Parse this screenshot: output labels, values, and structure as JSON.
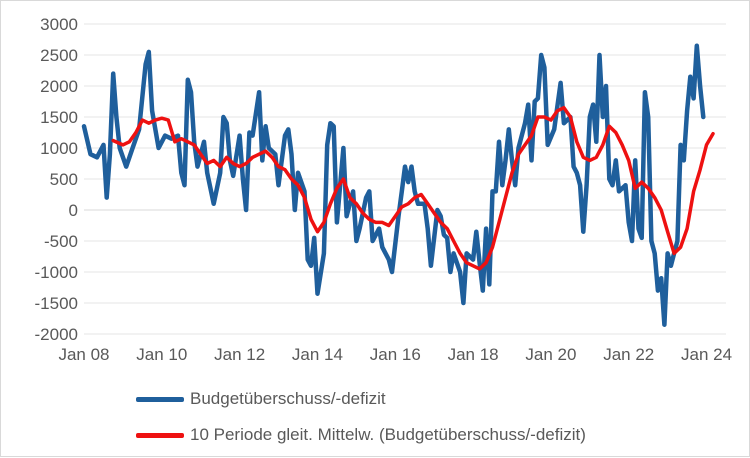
{
  "chart_data": {
    "type": "line",
    "title": "",
    "xlabel": "",
    "ylabel": "",
    "ylim": [
      -2000,
      3000
    ],
    "yticks": [
      3000,
      2500,
      2000,
      1500,
      1000,
      500,
      0,
      -500,
      -1000,
      -1500,
      -2000
    ],
    "ytick_labels": [
      "3000",
      "2500",
      "2000",
      "1500",
      "1000",
      "500",
      "0",
      "-500",
      "-1000",
      "-1500",
      "-2000"
    ],
    "xlim": [
      "2008-01",
      "2024-07"
    ],
    "xticks": [
      "2008-01",
      "2010-01",
      "2012-01",
      "2014-01",
      "2016-01",
      "2018-01",
      "2020-01",
      "2022-01",
      "2024-01"
    ],
    "xtick_labels": [
      "Jan 08",
      "Jan 10",
      "Jan 12",
      "Jan 14",
      "Jan 16",
      "Jan 18",
      "Jan 20",
      "Jan 22",
      "Jan 24"
    ],
    "grid": "horizontal",
    "legend_position": "bottom",
    "series": [
      {
        "name": "Budgetüberschuss/-defizit",
        "color": "#1f5f9c",
        "points": [
          [
            "2008-01",
            1350
          ],
          [
            "2008-03",
            900
          ],
          [
            "2008-05",
            850
          ],
          [
            "2008-07",
            1050
          ],
          [
            "2008-08",
            200
          ],
          [
            "2008-09",
            900
          ],
          [
            "2008-10",
            2200
          ],
          [
            "2008-11",
            1500
          ],
          [
            "2008-12",
            1000
          ],
          [
            "2009-02",
            700
          ],
          [
            "2009-04",
            1000
          ],
          [
            "2009-06",
            1300
          ],
          [
            "2009-08",
            2350
          ],
          [
            "2009-09",
            2550
          ],
          [
            "2009-10",
            1600
          ],
          [
            "2009-12",
            1000
          ],
          [
            "2010-02",
            1200
          ],
          [
            "2010-04",
            1150
          ],
          [
            "2010-06",
            1200
          ],
          [
            "2010-07",
            600
          ],
          [
            "2010-08",
            400
          ],
          [
            "2010-09",
            2100
          ],
          [
            "2010-10",
            1900
          ],
          [
            "2010-11",
            1100
          ],
          [
            "2010-12",
            700
          ],
          [
            "2011-02",
            1100
          ],
          [
            "2011-03",
            600
          ],
          [
            "2011-05",
            100
          ],
          [
            "2011-07",
            600
          ],
          [
            "2011-08",
            1500
          ],
          [
            "2011-09",
            1400
          ],
          [
            "2011-10",
            800
          ],
          [
            "2011-11",
            550
          ],
          [
            "2012-01",
            1200
          ],
          [
            "2012-02",
            500
          ],
          [
            "2012-03",
            0
          ],
          [
            "2012-04",
            1250
          ],
          [
            "2012-05",
            1200
          ],
          [
            "2012-07",
            1900
          ],
          [
            "2012-08",
            800
          ],
          [
            "2012-09",
            1350
          ],
          [
            "2012-10",
            1000
          ],
          [
            "2012-12",
            900
          ],
          [
            "2013-01",
            400
          ],
          [
            "2013-03",
            1200
          ],
          [
            "2013-04",
            1300
          ],
          [
            "2013-05",
            900
          ],
          [
            "2013-06",
            0
          ],
          [
            "2013-07",
            600
          ],
          [
            "2013-09",
            300
          ],
          [
            "2013-10",
            -800
          ],
          [
            "2013-11",
            -900
          ],
          [
            "2013-12",
            -450
          ],
          [
            "2014-01",
            -1350
          ],
          [
            "2014-03",
            -700
          ],
          [
            "2014-04",
            1050
          ],
          [
            "2014-05",
            1400
          ],
          [
            "2014-06",
            1350
          ],
          [
            "2014-07",
            -200
          ],
          [
            "2014-09",
            1000
          ],
          [
            "2014-10",
            -100
          ],
          [
            "2014-12",
            300
          ],
          [
            "2015-01",
            -500
          ],
          [
            "2015-02",
            -300
          ],
          [
            "2015-04",
            200
          ],
          [
            "2015-05",
            300
          ],
          [
            "2015-06",
            -500
          ],
          [
            "2015-08",
            -300
          ],
          [
            "2015-09",
            -600
          ],
          [
            "2015-11",
            -800
          ],
          [
            "2015-12",
            -1000
          ],
          [
            "2016-02",
            -100
          ],
          [
            "2016-03",
            300
          ],
          [
            "2016-04",
            700
          ],
          [
            "2016-05",
            450
          ],
          [
            "2016-06",
            700
          ],
          [
            "2016-07",
            300
          ],
          [
            "2016-08",
            100
          ],
          [
            "2016-10",
            100
          ],
          [
            "2016-11",
            -300
          ],
          [
            "2016-12",
            -900
          ],
          [
            "2017-02",
            0
          ],
          [
            "2017-03",
            -100
          ],
          [
            "2017-04",
            -400
          ],
          [
            "2017-05",
            -450
          ],
          [
            "2017-06",
            -1000
          ],
          [
            "2017-07",
            -700
          ],
          [
            "2017-09",
            -1000
          ],
          [
            "2017-10",
            -1500
          ],
          [
            "2017-11",
            -700
          ],
          [
            "2018-01",
            -800
          ],
          [
            "2018-02",
            -350
          ],
          [
            "2018-03",
            -850
          ],
          [
            "2018-04",
            -1300
          ],
          [
            "2018-05",
            -300
          ],
          [
            "2018-06",
            -1200
          ],
          [
            "2018-07",
            300
          ],
          [
            "2018-08",
            300
          ],
          [
            "2018-09",
            1100
          ],
          [
            "2018-10",
            400
          ],
          [
            "2018-11",
            800
          ],
          [
            "2018-12",
            1300
          ],
          [
            "2019-01",
            800
          ],
          [
            "2019-02",
            400
          ],
          [
            "2019-03",
            1000
          ],
          [
            "2019-05",
            1400
          ],
          [
            "2019-06",
            1700
          ],
          [
            "2019-07",
            800
          ],
          [
            "2019-08",
            1750
          ],
          [
            "2019-09",
            1800
          ],
          [
            "2019-10",
            2500
          ],
          [
            "2019-11",
            2300
          ],
          [
            "2019-12",
            1050
          ],
          [
            "2020-02",
            1300
          ],
          [
            "2020-04",
            2050
          ],
          [
            "2020-05",
            1400
          ],
          [
            "2020-07",
            1500
          ],
          [
            "2020-08",
            700
          ],
          [
            "2020-09",
            600
          ],
          [
            "2020-10",
            400
          ],
          [
            "2020-11",
            -350
          ],
          [
            "2020-12",
            400
          ],
          [
            "2021-01",
            1500
          ],
          [
            "2021-02",
            1700
          ],
          [
            "2021-03",
            1100
          ],
          [
            "2021-04",
            2500
          ],
          [
            "2021-05",
            1500
          ],
          [
            "2021-06",
            2000
          ],
          [
            "2021-07",
            500
          ],
          [
            "2021-08",
            400
          ],
          [
            "2021-09",
            800
          ],
          [
            "2021-10",
            300
          ],
          [
            "2021-12",
            400
          ],
          [
            "2022-01",
            -200
          ],
          [
            "2022-02",
            -500
          ],
          [
            "2022-03",
            800
          ],
          [
            "2022-04",
            -300
          ],
          [
            "2022-05",
            -450
          ],
          [
            "2022-06",
            1900
          ],
          [
            "2022-07",
            1500
          ],
          [
            "2022-08",
            -500
          ],
          [
            "2022-09",
            -700
          ],
          [
            "2022-10",
            -1300
          ],
          [
            "2022-11",
            -1100
          ],
          [
            "2022-12",
            -1850
          ],
          [
            "2023-01",
            -700
          ],
          [
            "2023-02",
            -900
          ],
          [
            "2023-03",
            -700
          ],
          [
            "2023-04",
            -500
          ],
          [
            "2023-05",
            1050
          ],
          [
            "2023-06",
            800
          ],
          [
            "2023-07",
            1600
          ],
          [
            "2023-08",
            2150
          ],
          [
            "2023-09",
            1800
          ],
          [
            "2023-10",
            2650
          ],
          [
            "2023-11",
            2000
          ],
          [
            "2023-12",
            1500
          ]
        ]
      },
      {
        "name": "10 Periode gleit. Mittelw. (Budgetüberschuss/-defizit)",
        "color": "#ee1111",
        "points": [
          [
            "2008-10",
            1120
          ],
          [
            "2009-01",
            1050
          ],
          [
            "2009-03",
            1100
          ],
          [
            "2009-05",
            1250
          ],
          [
            "2009-07",
            1450
          ],
          [
            "2009-09",
            1400
          ],
          [
            "2009-11",
            1450
          ],
          [
            "2010-01",
            1480
          ],
          [
            "2010-03",
            1450
          ],
          [
            "2010-05",
            1100
          ],
          [
            "2010-07",
            1150
          ],
          [
            "2010-09",
            1100
          ],
          [
            "2010-11",
            1050
          ],
          [
            "2011-01",
            900
          ],
          [
            "2011-03",
            750
          ],
          [
            "2011-05",
            800
          ],
          [
            "2011-07",
            700
          ],
          [
            "2011-09",
            850
          ],
          [
            "2011-11",
            750
          ],
          [
            "2012-01",
            700
          ],
          [
            "2012-03",
            750
          ],
          [
            "2012-05",
            850
          ],
          [
            "2012-07",
            900
          ],
          [
            "2012-09",
            950
          ],
          [
            "2012-11",
            850
          ],
          [
            "2013-01",
            700
          ],
          [
            "2013-03",
            650
          ],
          [
            "2013-05",
            500
          ],
          [
            "2013-07",
            400
          ],
          [
            "2013-09",
            200
          ],
          [
            "2013-11",
            -150
          ],
          [
            "2014-01",
            -350
          ],
          [
            "2014-03",
            -200
          ],
          [
            "2014-05",
            100
          ],
          [
            "2014-07",
            350
          ],
          [
            "2014-09",
            500
          ],
          [
            "2014-11",
            200
          ],
          [
            "2015-01",
            100
          ],
          [
            "2015-03",
            -50
          ],
          [
            "2015-05",
            -150
          ],
          [
            "2015-07",
            -200
          ],
          [
            "2015-09",
            -200
          ],
          [
            "2015-11",
            -250
          ],
          [
            "2016-01",
            -100
          ],
          [
            "2016-03",
            50
          ],
          [
            "2016-05",
            100
          ],
          [
            "2016-07",
            200
          ],
          [
            "2016-09",
            250
          ],
          [
            "2016-11",
            100
          ],
          [
            "2017-01",
            -50
          ],
          [
            "2017-03",
            -200
          ],
          [
            "2017-05",
            -300
          ],
          [
            "2017-07",
            -500
          ],
          [
            "2017-09",
            -700
          ],
          [
            "2017-11",
            -850
          ],
          [
            "2018-01",
            -900
          ],
          [
            "2018-03",
            -950
          ],
          [
            "2018-05",
            -850
          ],
          [
            "2018-07",
            -600
          ],
          [
            "2018-09",
            -200
          ],
          [
            "2018-11",
            200
          ],
          [
            "2019-01",
            600
          ],
          [
            "2019-03",
            900
          ],
          [
            "2019-05",
            1050
          ],
          [
            "2019-07",
            1200
          ],
          [
            "2019-09",
            1500
          ],
          [
            "2019-11",
            1500
          ],
          [
            "2020-01",
            1450
          ],
          [
            "2020-03",
            1600
          ],
          [
            "2020-05",
            1650
          ],
          [
            "2020-07",
            1500
          ],
          [
            "2020-09",
            1100
          ],
          [
            "2020-11",
            850
          ],
          [
            "2021-01",
            800
          ],
          [
            "2021-03",
            850
          ],
          [
            "2021-05",
            1050
          ],
          [
            "2021-07",
            1350
          ],
          [
            "2021-09",
            1250
          ],
          [
            "2021-11",
            1050
          ],
          [
            "2022-01",
            800
          ],
          [
            "2022-03",
            350
          ],
          [
            "2022-05",
            450
          ],
          [
            "2022-07",
            350
          ],
          [
            "2022-09",
            200
          ],
          [
            "2022-11",
            0
          ],
          [
            "2023-01",
            -350
          ],
          [
            "2023-03",
            -700
          ],
          [
            "2023-05",
            -600
          ],
          [
            "2023-07",
            -300
          ],
          [
            "2023-09",
            300
          ],
          [
            "2023-11",
            650
          ],
          [
            "2024-01",
            1050
          ],
          [
            "2024-03",
            1230
          ]
        ]
      }
    ]
  }
}
